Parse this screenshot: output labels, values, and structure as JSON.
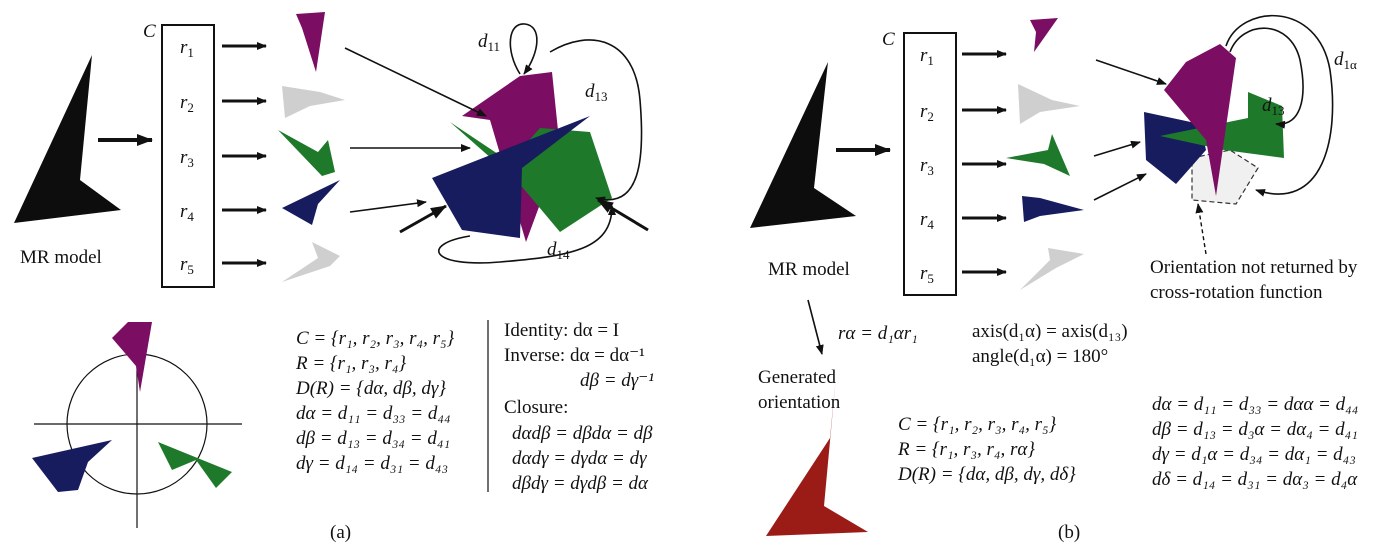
{
  "panel_a": {
    "model_label": "MR model",
    "set_label": "C",
    "rot_labels": [
      "r",
      "r",
      "r",
      "r",
      "r"
    ],
    "rot_indices": [
      "1",
      "2",
      "3",
      "4",
      "5"
    ],
    "d11": "d",
    "d11_sub": "11",
    "d13": "d",
    "d13_sub": "13",
    "d14": "d",
    "d14_sub": "14",
    "set_eqs": [
      "C = {r₁, r₂, r₃, r₄, r₅}",
      "R =  {r₁, r₃, r₄}",
      "D(R) = {dα, dβ, dγ}",
      "dα = d₁₁ = d₃₃ = d₄₄",
      "dβ = d₁₃ = d₃₄ = d₄₁",
      "dγ = d₁₄ = d₃₁ = d₄₃"
    ],
    "group_eqs": [
      "Identity: dα = I",
      "Inverse: dα = dα⁻¹",
      "dβ = dγ⁻¹",
      "Closure:",
      "dαdβ = dβdα = dβ",
      "dαdγ = dγdα = dγ",
      "dβdγ = dγdβ = dα"
    ],
    "caption": "(a)"
  },
  "panel_b": {
    "model_label": "MR model",
    "set_label": "C",
    "rot_labels": [
      "r",
      "r",
      "r",
      "r",
      "r"
    ],
    "rot_indices": [
      "1",
      "2",
      "3",
      "4",
      "5"
    ],
    "d13": "d",
    "d13_sub": "13",
    "d1a": "d",
    "d1a_sub": "1α",
    "note_line1": "Orientation not returned by",
    "note_line2": "cross-rotation function",
    "r_alpha_eq": "rα = d₁αr₁",
    "axis_eq": "axis(d₁α) = axis(d₁₃)",
    "angle_eq": "angle(d₁α) = 180°",
    "generated_line1": "Generated",
    "generated_line2": "orientation",
    "set_eqs": [
      "C = {r₁, r₂, r₃, r₄, r₅}",
      "R =  {r₁, r₃, r₄, rα}",
      "D(R) = {dα, dβ, dγ, dδ}"
    ],
    "d_eqs": [
      "dα = d₁₁ = d₃₃ = dαα = d₄₄",
      "dβ = d₁₃ = d₃α = dα₄ = d₄₁",
      "dγ = d₁α = d₃₄ = dα₁ = d₄₃",
      "dδ = d₁₄ = d₃₁ = dα₃ = d₄α"
    ],
    "caption": "(b)"
  },
  "colors": {
    "black_model": "#0d0d0d",
    "purple": "#7b0d63",
    "gray": "#cfcfcf",
    "green": "#1e7a2a",
    "navy": "#161c5e",
    "red": "#9b1c17"
  }
}
